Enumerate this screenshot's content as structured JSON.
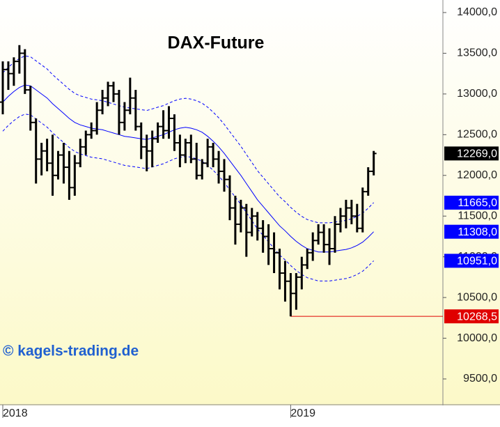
{
  "chart_data": {
    "type": "ohlc",
    "title": "DAX-Future",
    "watermark": "© kagels-trading.de",
    "categories": [
      "2018",
      null,
      null,
      null,
      null,
      null,
      null,
      null,
      null,
      null,
      null,
      null,
      null,
      null,
      null,
      null,
      null,
      null,
      null,
      null,
      null,
      null,
      null,
      null,
      null,
      null,
      null,
      null,
      null,
      null,
      null,
      null,
      null,
      null,
      null,
      null,
      null,
      null,
      null,
      null,
      null,
      null,
      null,
      null,
      null,
      null,
      null,
      null,
      null,
      null,
      null,
      null,
      "2019",
      null,
      null,
      null,
      null,
      null,
      null,
      null,
      null,
      null,
      null,
      null,
      null,
      null,
      null,
      null
    ],
    "ohlc": {
      "color": "#000000",
      "open": [
        12900,
        13300,
        13250,
        13400,
        13500,
        13050,
        12650,
        12200,
        12300,
        12150,
        12000,
        12250,
        12100,
        11850,
        12150,
        12350,
        12500,
        12550,
        12800,
        12950,
        13100,
        13000,
        12650,
        12800,
        12950,
        12600,
        12350,
        12300,
        12450,
        12600,
        12550,
        12700,
        12400,
        12250,
        12400,
        12200,
        12000,
        12150,
        12350,
        12200,
        12050,
        11950,
        11600,
        11400,
        11600,
        11300,
        11500,
        11350,
        11250,
        11100,
        11050,
        10800,
        10700,
        10550,
        10750,
        10900,
        11050,
        11200,
        11300,
        11150,
        11100,
        11400,
        11500,
        11600,
        11500,
        11350,
        11800,
        12050
      ],
      "high": [
        13400,
        13400,
        13450,
        13600,
        13550,
        13100,
        12700,
        12400,
        12450,
        12500,
        12300,
        12400,
        12300,
        12250,
        12450,
        12550,
        12650,
        12900,
        13050,
        13150,
        13150,
        13050,
        12900,
        13200,
        13050,
        12650,
        12500,
        12550,
        12650,
        12800,
        12850,
        12750,
        12500,
        12450,
        12500,
        12400,
        12200,
        12450,
        12400,
        12300,
        12200,
        12000,
        11750,
        11700,
        11650,
        11600,
        11550,
        11450,
        11400,
        11300,
        11100,
        10950,
        10800,
        10800,
        11000,
        11100,
        11300,
        11400,
        11400,
        11350,
        11500,
        11600,
        11700,
        11700,
        11650,
        11850,
        12100,
        12300
      ],
      "low": [
        12750,
        13050,
        13100,
        13250,
        13000,
        12550,
        11900,
        12000,
        12050,
        11750,
        11950,
        11900,
        11700,
        11750,
        12100,
        12250,
        12450,
        12500,
        12750,
        12850,
        12900,
        12500,
        12550,
        12750,
        12550,
        12200,
        12050,
        12100,
        12400,
        12450,
        12450,
        12300,
        12100,
        12150,
        12150,
        11950,
        11950,
        12100,
        12100,
        11900,
        11800,
        11450,
        11150,
        11300,
        11000,
        11250,
        11200,
        11050,
        10900,
        10800,
        10600,
        10450,
        10268.5,
        10350,
        10600,
        10850,
        10950,
        11150,
        11050,
        10900,
        11050,
        11300,
        11350,
        11400,
        11300,
        11300,
        11750,
        12000
      ],
      "close": [
        13300,
        13250,
        13400,
        13500,
        13050,
        12650,
        12200,
        12300,
        12150,
        12000,
        12250,
        12100,
        11850,
        12150,
        12350,
        12500,
        12550,
        12800,
        12950,
        13100,
        13000,
        12650,
        12800,
        12950,
        12600,
        12350,
        12300,
        12450,
        12600,
        12550,
        12700,
        12400,
        12250,
        12400,
        12200,
        12000,
        12150,
        12350,
        12200,
        12050,
        11950,
        11600,
        11400,
        11600,
        11300,
        11500,
        11350,
        11250,
        11100,
        11050,
        10800,
        10700,
        10550,
        10750,
        10900,
        11050,
        11200,
        11300,
        11150,
        11100,
        11400,
        11500,
        11600,
        11500,
        11350,
        11800,
        12050,
        12269
      ],
      "last_label": "12269,0"
    },
    "bands": [
      {
        "color": "#0000ff",
        "dashed": true,
        "last_label": "11665,0",
        "values": [
          13257,
          13327,
          13387,
          13437,
          13467,
          13457,
          13407,
          13357,
          13307,
          13237,
          13177,
          13117,
          13057,
          13007,
          12977,
          12957,
          12937,
          12927,
          12917,
          12897,
          12877,
          12857,
          12837,
          12827,
          12817,
          12807,
          12797,
          12817,
          12837,
          12857,
          12887,
          12917,
          12937,
          12947,
          12937,
          12917,
          12887,
          12837,
          12777,
          12707,
          12627,
          12537,
          12447,
          12357,
          12257,
          12157,
          12057,
          11977,
          11897,
          11817,
          11737,
          11677,
          11607,
          11547,
          11497,
          11457,
          11437,
          11417,
          11417,
          11417,
          11427,
          11437,
          11447,
          11467,
          11497,
          11537,
          11597,
          11665
        ]
      },
      {
        "color": "#0000ff",
        "dashed": false,
        "last_label": "11308,0",
        "values": [
          12900,
          12970,
          13030,
          13080,
          13110,
          13100,
          13050,
          13000,
          12950,
          12880,
          12820,
          12760,
          12700,
          12650,
          12620,
          12600,
          12580,
          12570,
          12560,
          12540,
          12520,
          12500,
          12480,
          12470,
          12460,
          12450,
          12440,
          12460,
          12480,
          12500,
          12530,
          12560,
          12580,
          12590,
          12580,
          12560,
          12530,
          12480,
          12420,
          12350,
          12270,
          12180,
          12090,
          12000,
          11900,
          11800,
          11700,
          11620,
          11540,
          11460,
          11380,
          11320,
          11250,
          11190,
          11140,
          11100,
          11080,
          11060,
          11060,
          11060,
          11070,
          11080,
          11090,
          11110,
          11140,
          11180,
          11240,
          11308
        ]
      },
      {
        "color": "#0000ff",
        "dashed": true,
        "last_label": "10951,0",
        "values": [
          12543,
          12613,
          12673,
          12723,
          12753,
          12743,
          12693,
          12643,
          12593,
          12523,
          12463,
          12403,
          12343,
          12293,
          12263,
          12243,
          12223,
          12213,
          12203,
          12183,
          12163,
          12143,
          12123,
          12113,
          12103,
          12093,
          12083,
          12103,
          12123,
          12143,
          12173,
          12203,
          12223,
          12233,
          12223,
          12203,
          12173,
          12123,
          12063,
          11993,
          11913,
          11823,
          11733,
          11643,
          11543,
          11443,
          11343,
          11263,
          11183,
          11103,
          11023,
          10963,
          10893,
          10833,
          10783,
          10743,
          10723,
          10703,
          10703,
          10703,
          10713,
          10723,
          10733,
          10753,
          10783,
          10823,
          10883,
          10951
        ]
      }
    ],
    "support": {
      "value": 10268.5,
      "label": "10268,5",
      "color": "#e00000"
    },
    "ylim": [
      9192,
      14154
    ],
    "yticks": [
      {
        "value": 9500,
        "label": "9500,0"
      },
      {
        "value": 10000,
        "label": "10000,0"
      },
      {
        "value": 10500,
        "label": "10500,0"
      },
      {
        "value": 11000,
        "label": "11000,0"
      },
      {
        "value": 11500,
        "label": "11500,0"
      },
      {
        "value": 12000,
        "label": "12000,0"
      },
      {
        "value": 12500,
        "label": "12500,0"
      },
      {
        "value": 13000,
        "label": "13000,0"
      },
      {
        "value": 13500,
        "label": "13500,0"
      },
      {
        "value": 14000,
        "label": "14000,0"
      }
    ]
  }
}
